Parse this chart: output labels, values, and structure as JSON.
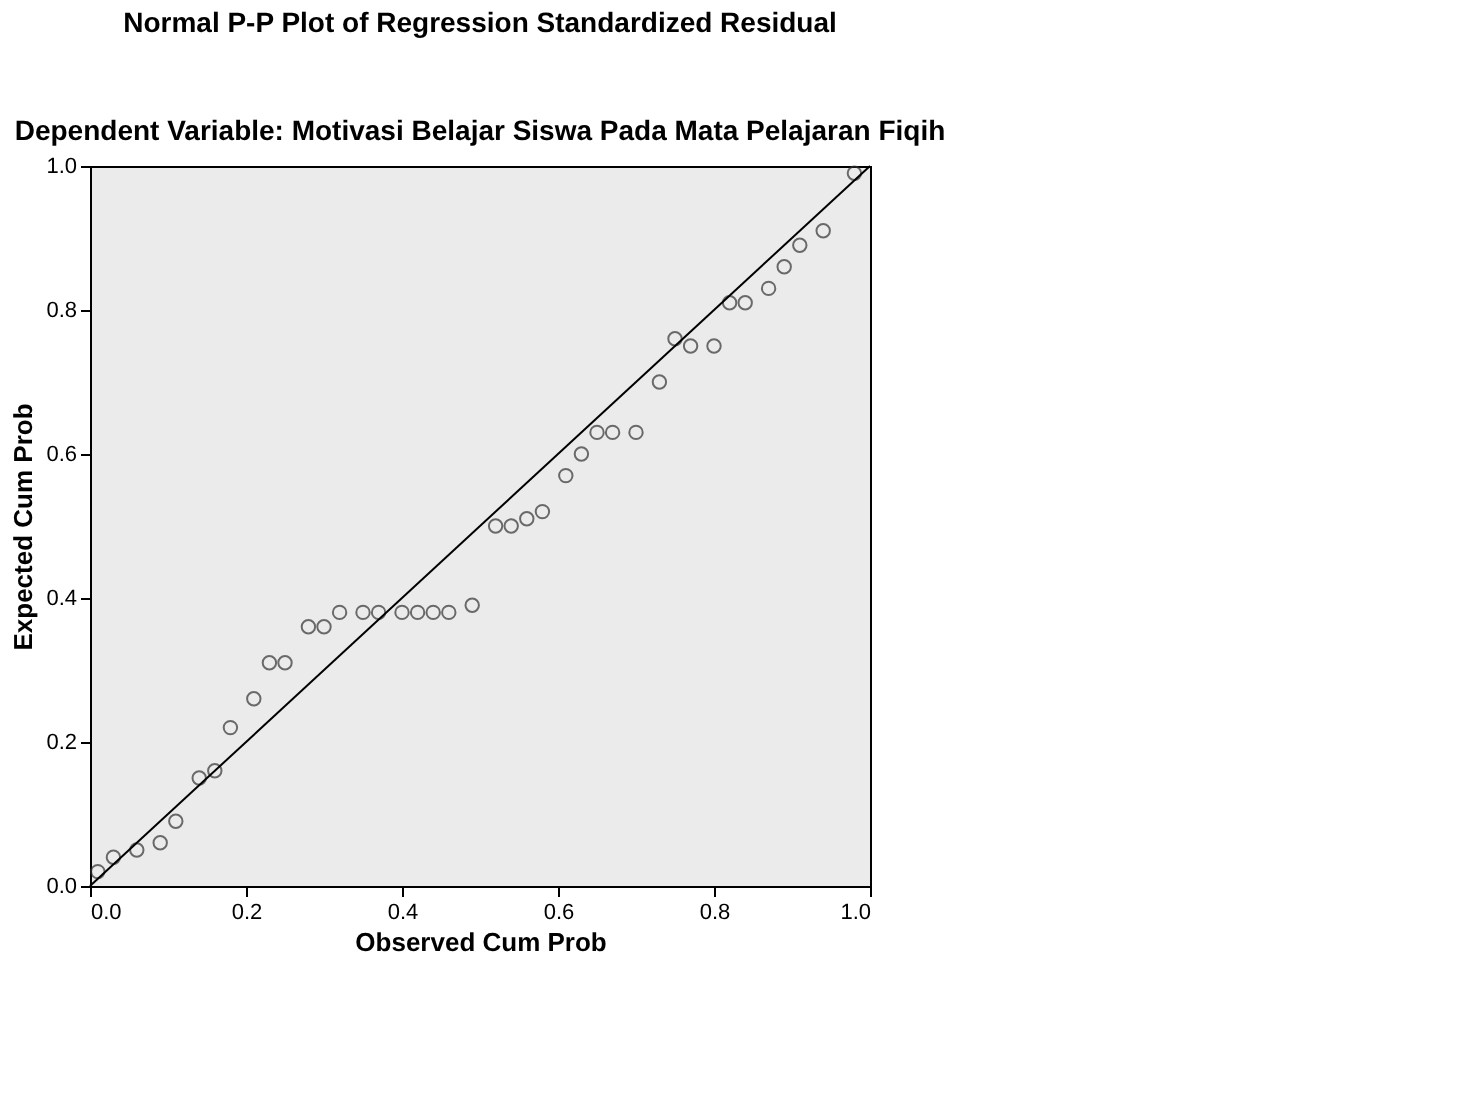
{
  "chart_data": {
    "type": "scatter",
    "title": "Normal P-P Plot of Regression Standardized Residual",
    "subtitle": "Dependent Variable: Motivasi Belajar Siswa Pada Mata Pelajaran Fiqih",
    "xlabel": "Observed Cum Prob",
    "ylabel": "Expected Cum Prob",
    "xlim": [
      0,
      1
    ],
    "ylim": [
      0,
      1
    ],
    "xticks": [
      {
        "value": 0,
        "label": "0.0"
      },
      {
        "value": 0.2,
        "label": "0.2"
      },
      {
        "value": 0.4,
        "label": "0.4"
      },
      {
        "value": 0.6,
        "label": "0.6"
      },
      {
        "value": 0.8,
        "label": "0.8"
      },
      {
        "value": 1,
        "label": "1.0"
      }
    ],
    "yticks": [
      {
        "value": 0,
        "label": "0.0"
      },
      {
        "value": 0.2,
        "label": "0.2"
      },
      {
        "value": 0.4,
        "label": "0.4"
      },
      {
        "value": 0.6,
        "label": "0.6"
      },
      {
        "value": 0.8,
        "label": "0.8"
      },
      {
        "value": 1,
        "label": "1.0"
      }
    ],
    "grid": false,
    "marker": "circle",
    "series": [
      {
        "type": "scatter",
        "color": "#333333",
        "x": [
          0.01,
          0.03,
          0.06,
          0.09,
          0.11,
          0.14,
          0.16,
          0.18,
          0.21,
          0.23,
          0.25,
          0.28,
          0.3,
          0.32,
          0.35,
          0.37,
          0.4,
          0.42,
          0.44,
          0.46,
          0.49,
          0.52,
          0.54,
          0.56,
          0.58,
          0.61,
          0.63,
          0.65,
          0.67,
          0.7,
          0.73,
          0.75,
          0.77,
          0.8,
          0.82,
          0.84,
          0.87,
          0.89,
          0.91,
          0.94,
          0.98
        ],
        "values": [
          0.02,
          0.04,
          0.05,
          0.06,
          0.09,
          0.15,
          0.16,
          0.22,
          0.26,
          0.31,
          0.31,
          0.36,
          0.36,
          0.38,
          0.38,
          0.38,
          0.38,
          0.38,
          0.38,
          0.38,
          0.39,
          0.5,
          0.5,
          0.51,
          0.52,
          0.57,
          0.6,
          0.63,
          0.63,
          0.63,
          0.7,
          0.76,
          0.75,
          0.75,
          0.81,
          0.81,
          0.83,
          0.86,
          0.89,
          0.91,
          0.99
        ]
      },
      {
        "type": "line",
        "color": "#000000",
        "marker": "none",
        "x": [
          0,
          1
        ],
        "values": [
          0,
          1
        ]
      }
    ]
  }
}
